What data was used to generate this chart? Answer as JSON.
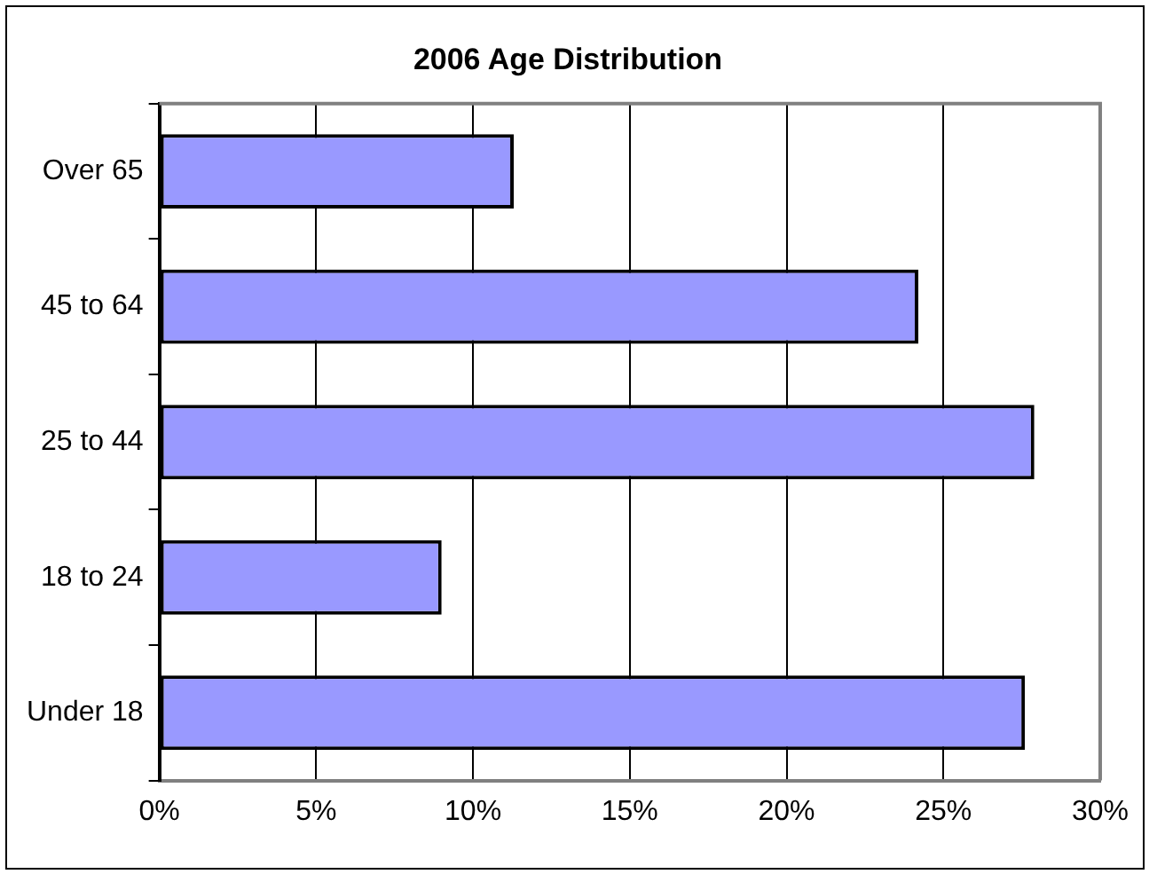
{
  "chart_data": {
    "type": "bar",
    "orientation": "horizontal",
    "title": "2006 Age Distribution",
    "categories": [
      "Over 65",
      "45 to 64",
      "25 to 44",
      "18 to 24",
      "Under 18"
    ],
    "values": [
      11.3,
      24.2,
      27.9,
      9.0,
      27.6
    ],
    "color": "#9999ff",
    "xlim": [
      0,
      30
    ],
    "xticks": [
      {
        "value": 0,
        "label": "0%"
      },
      {
        "value": 5,
        "label": "5%"
      },
      {
        "value": 10,
        "label": "10%"
      },
      {
        "value": 15,
        "label": "15%"
      },
      {
        "value": 20,
        "label": "20%"
      },
      {
        "value": 25,
        "label": "25%"
      },
      {
        "value": 30,
        "label": "30%"
      }
    ],
    "grid": "x",
    "legend": false
  }
}
